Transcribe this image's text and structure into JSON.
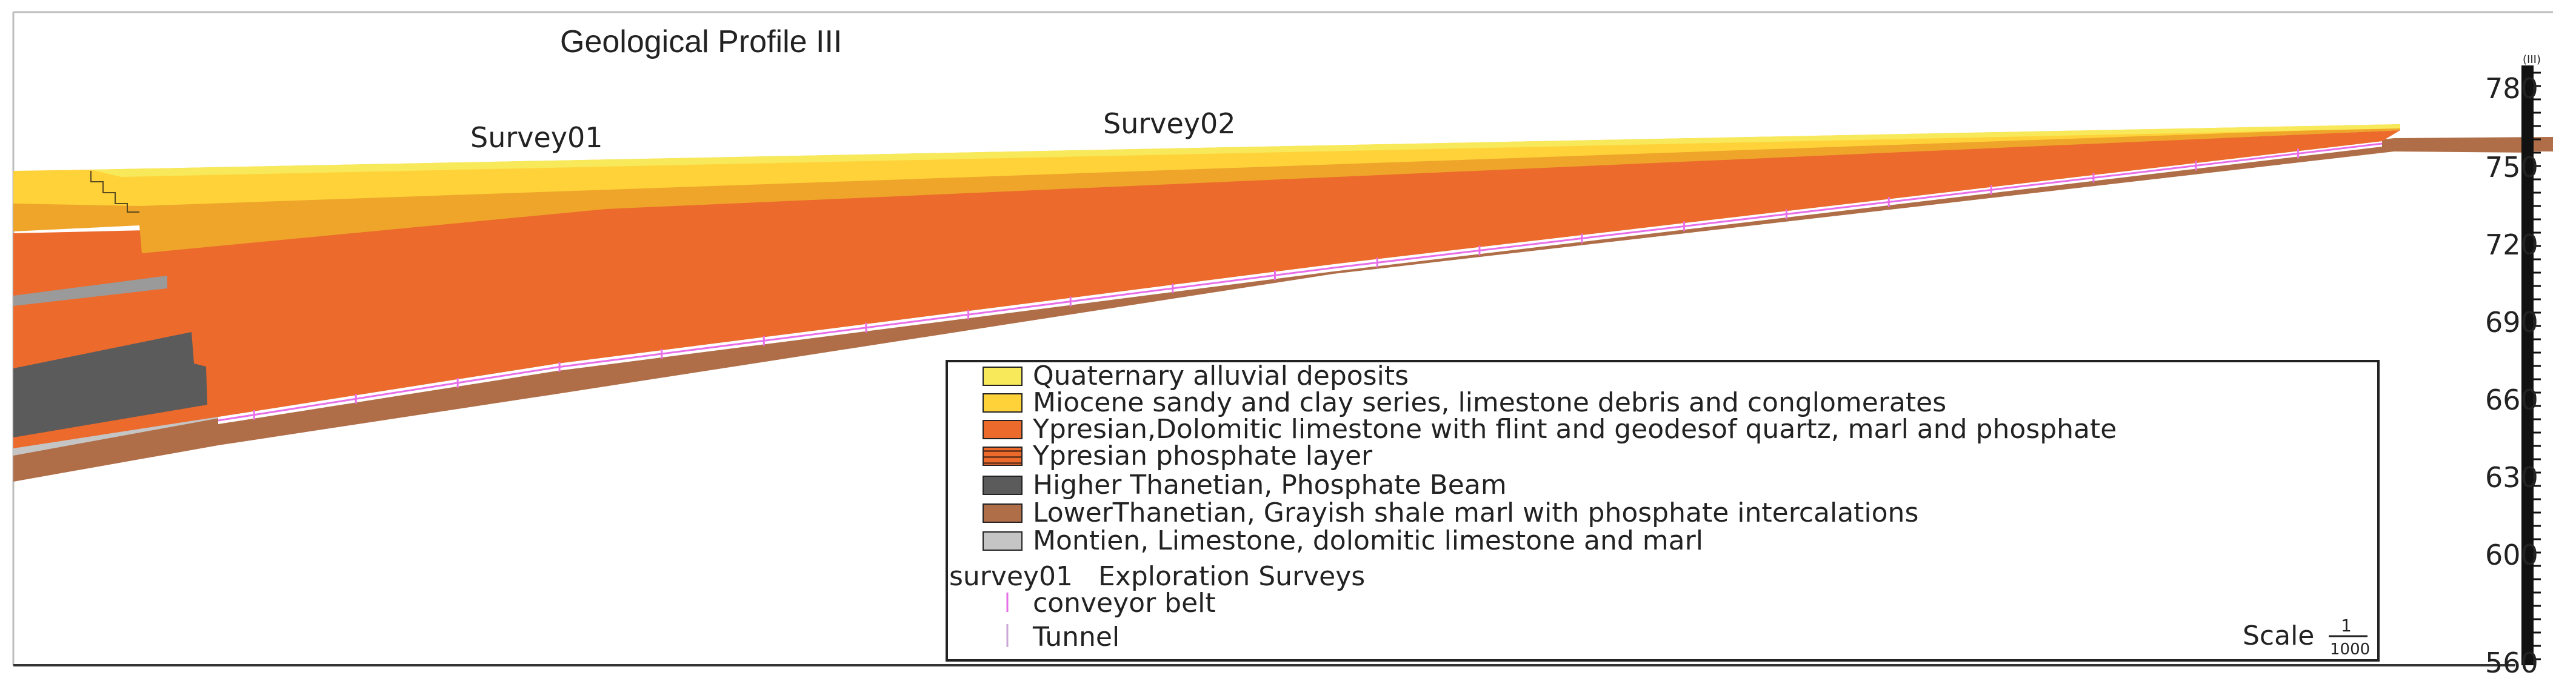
{
  "title": "Geological Profile III",
  "survey_labels": [
    "Survey01",
    "Survey02"
  ],
  "scale": {
    "label": "Scale",
    "numerator": "1",
    "denominator": "1000"
  },
  "elevation_axis": {
    "unit_label": "(III)",
    "tick_labels": [
      "780",
      "750",
      "720",
      "690",
      "660",
      "630",
      "600",
      "560"
    ]
  },
  "legend": {
    "items": [
      {
        "label": "Quaternary alluvial deposits",
        "color": "#f7e95a",
        "pattern": "solid"
      },
      {
        "label": "Miocene sandy and clay series, limestone debris and conglomerates",
        "color": "#ffd23a",
        "pattern": "solid"
      },
      {
        "label": "Ypresian,Dolomitic limestone with flint and geodesof quartz, marl and phosphate",
        "color": "#ec6a2c",
        "pattern": "solid"
      },
      {
        "label": "Ypresian phosphate layer",
        "color": "#ec6a2c",
        "pattern": "striped"
      },
      {
        "label": "Higher Thanetian, Phosphate Beam",
        "color": "#5b5b5b",
        "pattern": "solid"
      },
      {
        "label": "LowerThanetian, Grayish shale marl with phosphate intercalations",
        "color": "#b06e48",
        "pattern": "solid"
      },
      {
        "label": "Montien, Limestone, dolomitic limestone and marl",
        "color": "#c5c5c5",
        "pattern": "solid"
      }
    ],
    "survey_entry": {
      "code": "survey01",
      "label": "Exploration Surveys"
    },
    "line_items": [
      {
        "label": "conveyor belt",
        "color": "#e86ee8"
      },
      {
        "label": "Tunnel",
        "color": "#c9a6d6"
      }
    ]
  },
  "colors": {
    "quaternary": "#f7e95a",
    "miocene": "#ffd23a",
    "miocene_dark": "#eea52a",
    "ypresian": "#ec6a2c",
    "phosphate_beam": "#5b5b5b",
    "lower_thanetian": "#b06e48",
    "montien": "#c5c5c5",
    "conveyor": "#e86ee8",
    "tunnel": "#c9a6d6"
  }
}
